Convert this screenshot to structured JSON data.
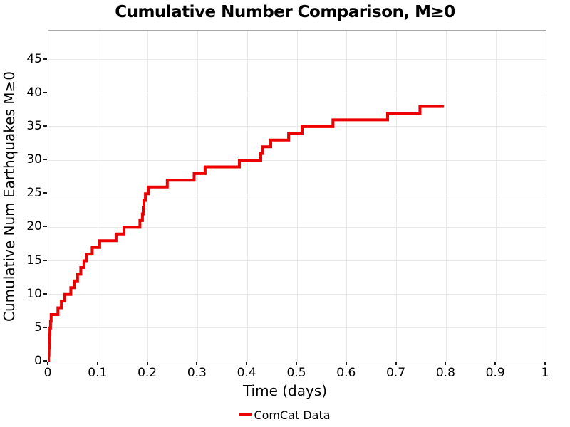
{
  "colors": {
    "background": "#FFFFFF",
    "line": "#ED0000",
    "grid": "#E9E9E9",
    "plot_border": "#A9A9A9",
    "text": "#000000",
    "tick": "#1A1A1A"
  },
  "legend": {
    "label": "ComCat Data",
    "swatch_color": "#ED0000",
    "position": "bottom-center"
  },
  "chart_data": {
    "type": "line",
    "subtype": "cumulative-step",
    "title": "Cumulative Number Comparison, M≥0",
    "xlabel": "Time (days)",
    "ylabel": "Cumulative Num Earthquakes M≥0",
    "xlim": [
      0,
      1
    ],
    "ylim": [
      0,
      49.3
    ],
    "grid_on": true,
    "x_tick_values": [
      0,
      0.1,
      0.2,
      0.3,
      0.4,
      0.5,
      0.6,
      0.7,
      0.8,
      0.9,
      1
    ],
    "x_tick_labels": [
      "0",
      "0.1",
      "0.2",
      "0.3",
      "0.4",
      "0.5",
      "0.6",
      "0.7",
      "0.8",
      "0.9",
      "1"
    ],
    "y_tick_values": [
      0,
      5,
      10,
      15,
      20,
      25,
      30,
      35,
      40,
      45
    ],
    "y_tick_labels": [
      "0",
      "5",
      "10",
      "15",
      "20",
      "25",
      "30",
      "35",
      "40",
      "45"
    ],
    "x_grid": [
      0.1,
      0.2,
      0.3,
      0.4,
      0.5,
      0.6,
      0.7,
      0.8,
      0.9
    ],
    "y_grid": [
      5,
      10,
      15,
      20,
      25,
      30,
      35,
      40,
      45
    ],
    "series": [
      {
        "name": "ComCat Data",
        "color": "#ED0000",
        "line_width": 4,
        "start": [
          0,
          0
        ],
        "end_time": 0.795,
        "final_value": 38,
        "step_points": [
          [
            0.0005,
            1
          ],
          [
            0.001,
            2
          ],
          [
            0.0016,
            3
          ],
          [
            0.0022,
            4
          ],
          [
            0.003,
            5
          ],
          [
            0.0042,
            6
          ],
          [
            0.0055,
            7
          ],
          [
            0.019,
            8
          ],
          [
            0.026,
            9
          ],
          [
            0.0325,
            10
          ],
          [
            0.045,
            11
          ],
          [
            0.052,
            12
          ],
          [
            0.0585,
            13
          ],
          [
            0.065,
            14
          ],
          [
            0.0715,
            15
          ],
          [
            0.076,
            16
          ],
          [
            0.088,
            17
          ],
          [
            0.103,
            18
          ],
          [
            0.136,
            19
          ],
          [
            0.152,
            20
          ],
          [
            0.184,
            21
          ],
          [
            0.189,
            22
          ],
          [
            0.1905,
            23
          ],
          [
            0.192,
            24
          ],
          [
            0.195,
            25
          ],
          [
            0.201,
            26
          ],
          [
            0.239,
            27
          ],
          [
            0.293,
            28
          ],
          [
            0.315,
            29
          ],
          [
            0.384,
            30
          ],
          [
            0.427,
            31
          ],
          [
            0.4305,
            32
          ],
          [
            0.447,
            33
          ],
          [
            0.483,
            34
          ],
          [
            0.51,
            35
          ],
          [
            0.572,
            36
          ],
          [
            0.682,
            37
          ],
          [
            0.747,
            38
          ]
        ]
      }
    ]
  }
}
